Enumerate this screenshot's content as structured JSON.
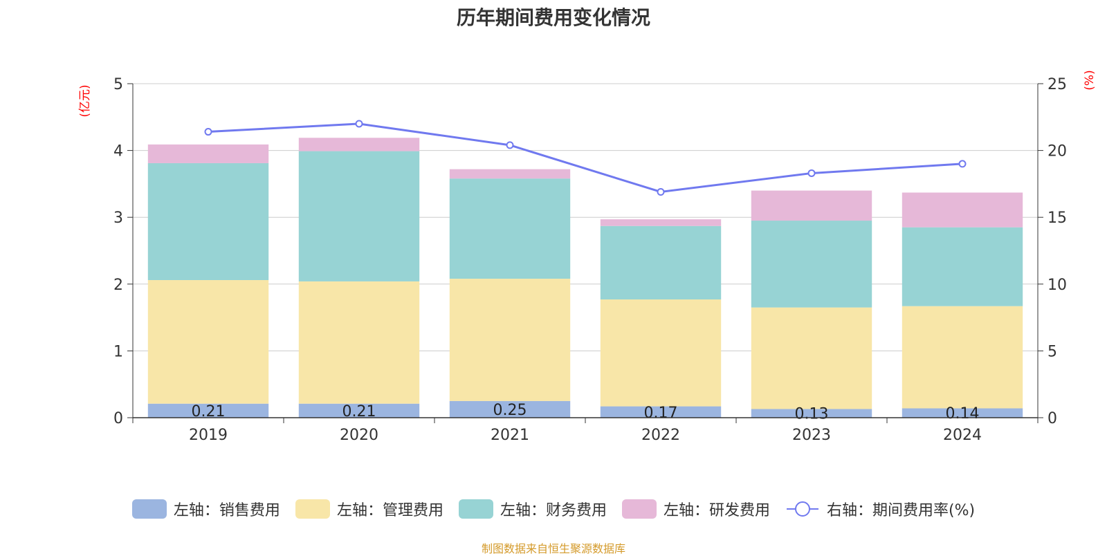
{
  "colors": {
    "sales": "#9bb5e0",
    "admin": "#f8e6a8",
    "finance": "#97d3d4",
    "rnd": "#e6b8d8",
    "rate": "#7079ef",
    "axis_unit": "#ff0000",
    "source": "#d49a2a"
  },
  "chart_data": {
    "type": "bar",
    "title": "历年期间费用变化情况",
    "left_axis_label": "(亿元)",
    "right_axis_label": "(%)",
    "categories": [
      "2019",
      "2020",
      "2021",
      "2022",
      "2023",
      "2024"
    ],
    "left_ylim": [
      0,
      5
    ],
    "left_ticks": [
      "0",
      "1",
      "2",
      "3",
      "4",
      "5"
    ],
    "right_ylim": [
      0,
      25
    ],
    "right_ticks": [
      "0",
      "5",
      "10",
      "15",
      "20",
      "25"
    ],
    "grid": true,
    "legend_position": "bottom",
    "series": [
      {
        "name": "左轴：销售费用",
        "axis": "left",
        "type": "bar",
        "stack": "total",
        "values": [
          0.21,
          0.21,
          0.25,
          0.17,
          0.13,
          0.14
        ],
        "data_labels": [
          "0.21",
          "0.21",
          "0.25",
          "0.17",
          "0.13",
          "0.14"
        ]
      },
      {
        "name": "左轴：管理费用",
        "axis": "left",
        "type": "bar",
        "stack": "total",
        "values": [
          1.85,
          1.83,
          1.83,
          1.6,
          1.52,
          1.53
        ]
      },
      {
        "name": "左轴：财务费用",
        "axis": "left",
        "type": "bar",
        "stack": "total",
        "values": [
          1.75,
          1.95,
          1.5,
          1.1,
          1.3,
          1.18
        ]
      },
      {
        "name": "左轴：研发费用",
        "axis": "left",
        "type": "bar",
        "stack": "total",
        "values": [
          0.28,
          0.2,
          0.14,
          0.1,
          0.45,
          0.52
        ]
      },
      {
        "name": "右轴：期间费用率(%)",
        "axis": "right",
        "type": "line",
        "values": [
          21.4,
          22.0,
          20.4,
          16.9,
          18.3,
          19.0
        ]
      }
    ]
  },
  "source_text": "制图数据来自恒生聚源数据库"
}
